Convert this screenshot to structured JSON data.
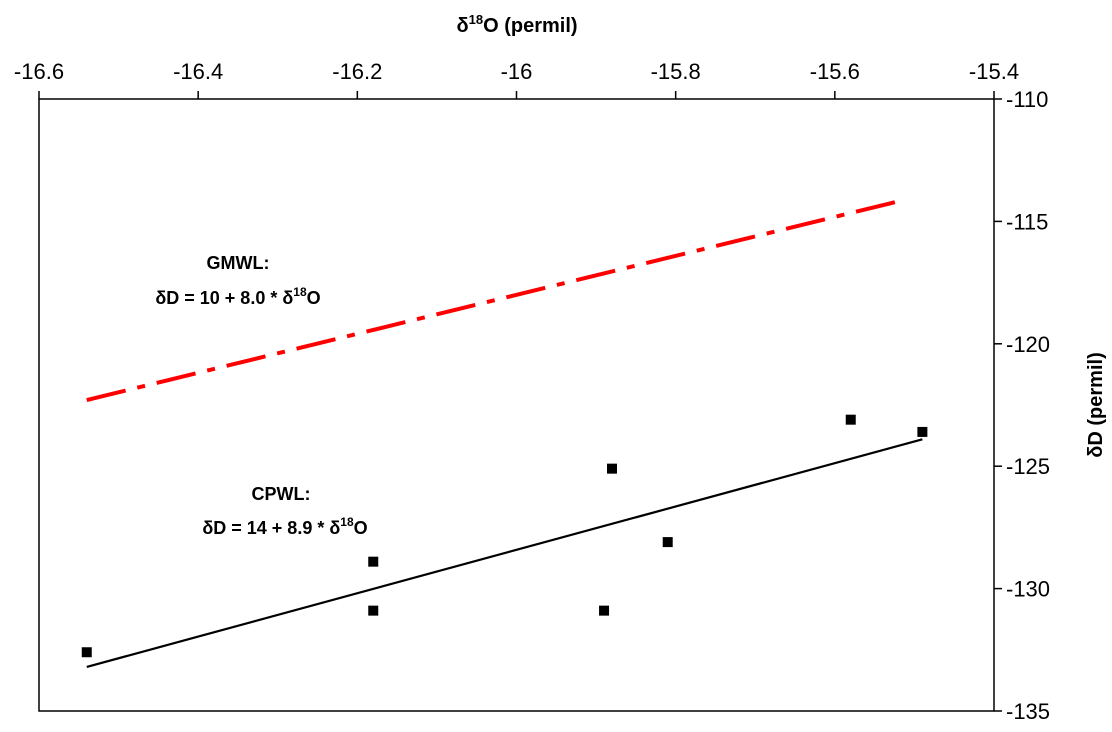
{
  "chart_data": {
    "type": "scatter",
    "title": "",
    "xlabel": {
      "pre": "δ",
      "sup": "18",
      "post": "O (permil)"
    },
    "ylabel": "δD (permil)",
    "xlim": [
      -16.6,
      -15.4
    ],
    "ylim": [
      -135,
      -110
    ],
    "x_axis_position": "top",
    "y_axis_position": "right",
    "grid": false,
    "x_ticks": [
      -16.6,
      -16.4,
      -16.2,
      -16,
      -15.8,
      -15.6,
      -15.4
    ],
    "x_tick_labels": [
      "-16.6",
      "-16.4",
      "-16.2",
      "-16",
      "-15.8",
      "-15.6",
      "-15.4"
    ],
    "y_ticks": [
      -110,
      -115,
      -120,
      -125,
      -130,
      -135
    ],
    "y_tick_labels": [
      "-110",
      "-115",
      "-120",
      "-125",
      "-130",
      "-135"
    ],
    "series": [
      {
        "kind": "points",
        "marker": "square",
        "color": "#000000",
        "x": [
          -16.54,
          -16.18,
          -16.18,
          -15.89,
          -15.88,
          -15.81,
          -15.58,
          -15.49
        ],
        "y": [
          -132.6,
          -128.9,
          -130.9,
          -130.9,
          -125.1,
          -128.1,
          -123.1,
          -123.6
        ]
      },
      {
        "kind": "line",
        "style": "solid",
        "color": "#000000",
        "x": [
          -16.54,
          -15.49
        ],
        "y": [
          -133.2,
          -123.9
        ]
      },
      {
        "kind": "line",
        "style": "dash-dot",
        "color": "#ff0000",
        "x": [
          -16.54,
          -15.51
        ],
        "y": [
          -122.3,
          -114.1
        ]
      }
    ],
    "annotations": [
      {
        "line1": "GMWL:",
        "eq_pre": "δD = 10 + 8.0 * δ",
        "eq_sup": "18",
        "eq_post": "O"
      },
      {
        "line1": "CPWL:",
        "eq_pre": "δD = 14 + 8.9 * δ",
        "eq_sup": "18",
        "eq_post": "O"
      }
    ]
  }
}
